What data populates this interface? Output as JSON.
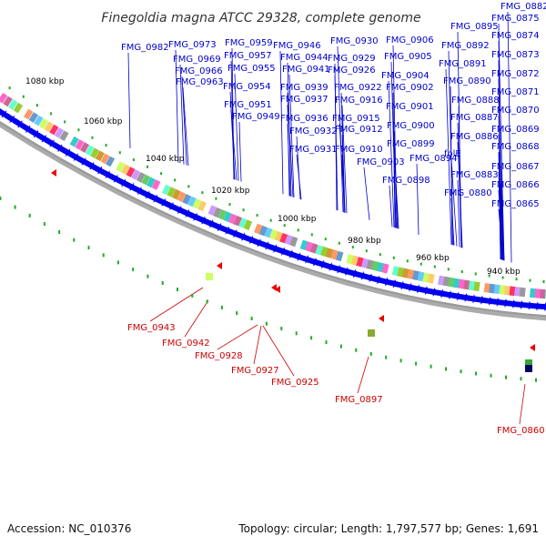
{
  "title": "Finegoldia magna ATCC 29328, complete genome",
  "footer": {
    "accession": "Accession: NC_010376",
    "topology": "Topology: circular; Length: 1,797,577 bp; Genes: 1,691"
  },
  "kbp_labels": [
    "1080 kbp",
    "1060 kbp",
    "1040 kbp",
    "1020 kbp",
    "1000 kbp",
    "980 kbp",
    "960 kbp",
    "940 kbp"
  ],
  "blue_labels": [
    "FMG_0982",
    "FMG_0973",
    "FMG_0969",
    "FMG_0966",
    "FMG_0963",
    "FMG_0959",
    "FMG_0957",
    "FMG_0955",
    "FMG_0954",
    "FMG_0951",
    "FMG_0949",
    "FMG_0946",
    "FMG_0944",
    "FMG_0941",
    "FMG_0939",
    "FMG_0937",
    "FMG_0936",
    "FMG_0932",
    "FMG_0931",
    "FMG_0930",
    "FMG_0929",
    "FMG_0926",
    "FMG_0922",
    "FMG_0916",
    "FMG_0915",
    "FMG_0912",
    "FMG_0910",
    "FMG_0906",
    "FMG_0905",
    "FMG_0904",
    "FMG_0902",
    "FMG_0901",
    "FMG_0900",
    "FMG_0899",
    "FMG_0903",
    "FMG_0894",
    "FMG_0898",
    "FMG_0895",
    "FMG_0892",
    "FMG_0891",
    "FMG_0890",
    "FMG_0888",
    "FMG_0887",
    "FMG_0886",
    "folE",
    "FMG_0883",
    "FMG_0880",
    "FMG_0882",
    "FMG_0875",
    "FMG_0874",
    "FMG_0873",
    "FMG_0872",
    "FMG_0871",
    "FMG_0870",
    "FMG_0869",
    "FMG_0868",
    "FMG_0867",
    "FMG_0866",
    "FMG_0865"
  ],
  "red_labels": [
    "FMG_0943",
    "FMG_0942",
    "FMG_0928",
    "FMG_0927",
    "FMG_0925",
    "FMG_0897",
    "FMG_0860"
  ],
  "colors": {
    "forward": "#0000ee",
    "reverse": "#ee0000",
    "blue_label": "#0000cc",
    "red_label": "#cc0000",
    "tick": "#22aa22",
    "backbone": "#888888"
  }
}
